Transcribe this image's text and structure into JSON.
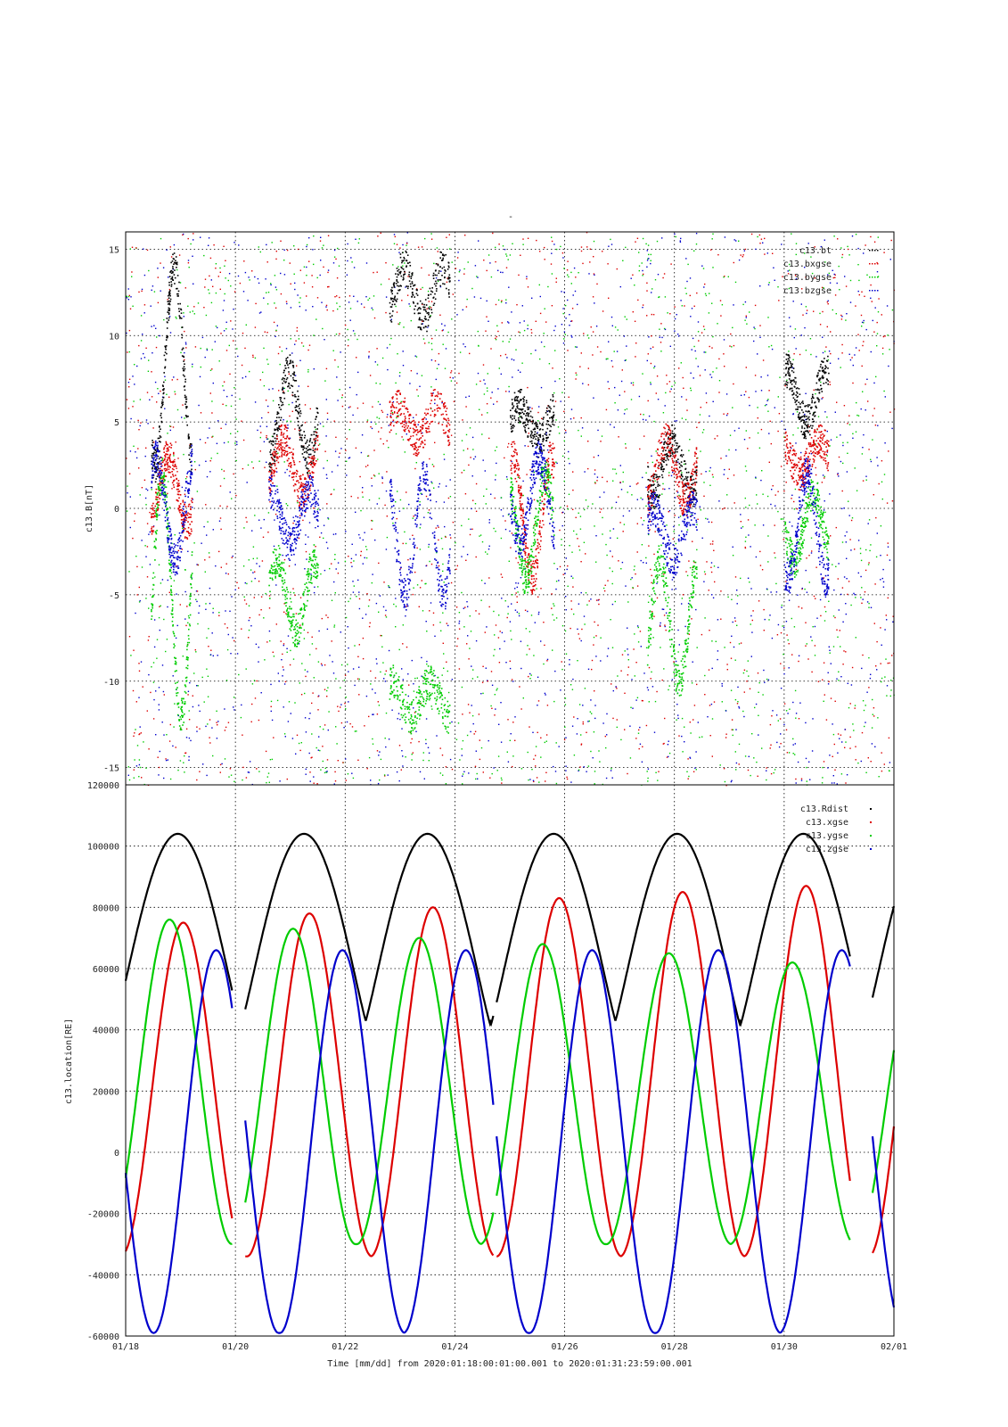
{
  "figure": {
    "top_mark": "-",
    "footer_label": "Time [mm/dd]  from 2020:01:18:00:01:00.001  to  2020:01:31:23:59:00.001"
  },
  "chart_data": [
    {
      "type": "scatter",
      "ylabel": "c13.B[nT]",
      "xlabel": "",
      "ylim": [
        -16,
        16
      ],
      "yticks": [
        -15,
        -10,
        -5,
        0,
        5,
        10,
        15
      ],
      "xlim_days": [
        0,
        14
      ],
      "legend_placement": "top-right",
      "grid": true,
      "series": [
        {
          "name": "c13.bt",
          "color": "#000000"
        },
        {
          "name": "c13.bxgse",
          "color": "#dd0000"
        },
        {
          "name": "c13.bygse",
          "color": "#00cc00"
        },
        {
          "name": "c13.bzgse",
          "color": "#0000cc"
        }
      ],
      "clusters": [
        {
          "x": [
            0.45,
            1.2
          ],
          "bt": [
            2.5,
            14
          ],
          "bx": [
            -0.8,
            3
          ],
          "by": [
            -12,
            2
          ],
          "bz": [
            -3,
            3
          ]
        },
        {
          "x": [
            2.6,
            3.5
          ],
          "bt": [
            3,
            8
          ],
          "bx": [
            1,
            4
          ],
          "by": [
            -7,
            -3
          ],
          "bz": [
            -2,
            1
          ]
        },
        {
          "x": [
            4.8,
            5.9
          ],
          "bt": [
            11,
            14
          ],
          "bx": [
            4,
            6
          ],
          "by": [
            -12,
            -10
          ],
          "bz": [
            -5,
            2
          ]
        },
        {
          "x": [
            7.0,
            7.8
          ],
          "bt": [
            4,
            6
          ],
          "bx": [
            -4,
            3
          ],
          "by": [
            -4,
            2
          ],
          "bz": [
            -2,
            3
          ]
        },
        {
          "x": [
            9.5,
            10.4
          ],
          "bt": [
            1,
            4
          ],
          "bx": [
            0.5,
            4
          ],
          "by": [
            -10,
            -3
          ],
          "bz": [
            -3,
            0
          ]
        },
        {
          "x": [
            12.0,
            12.8
          ],
          "bt": [
            5,
            8
          ],
          "bx": [
            2,
            4
          ],
          "by": [
            -3,
            1
          ],
          "bz": [
            -4,
            2
          ]
        }
      ]
    },
    {
      "type": "line",
      "ylabel": "c13.location[RE]",
      "xlabel": "Time [mm/dd]  from 2020:01:18:00:01:00.001  to  2020:01:31:23:59:00.001",
      "ylim": [
        -60000,
        120000
      ],
      "yticks": [
        -60000,
        -40000,
        -20000,
        0,
        20000,
        40000,
        60000,
        80000,
        100000,
        120000
      ],
      "xlim_days": [
        0,
        14
      ],
      "xticks": [
        {
          "day": 0,
          "label": "01/18"
        },
        {
          "day": 2,
          "label": "01/20"
        },
        {
          "day": 4,
          "label": "01/22"
        },
        {
          "day": 6,
          "label": "01/24"
        },
        {
          "day": 8,
          "label": "01/26"
        },
        {
          "day": 10,
          "label": "01/28"
        },
        {
          "day": 12,
          "label": "01/30"
        },
        {
          "day": 14,
          "label": "02/01"
        }
      ],
      "legend_placement": "top-right",
      "grid": true,
      "orbit_period_days": 2.28,
      "data_gaps_days": [
        [
          1.95,
          2.17
        ],
        [
          6.7,
          6.75
        ],
        [
          13.2,
          13.6
        ]
      ],
      "series": [
        {
          "name": "c13.Rdist",
          "color": "#000000",
          "peaks": [
            [
              0.95,
              104000
            ],
            [
              3.25,
              104000
            ],
            [
              5.5,
              104000
            ],
            [
              7.8,
              104000
            ],
            [
              10.05,
              104000
            ],
            [
              12.35,
              104000
            ]
          ],
          "min": 42000
        },
        {
          "name": "c13.xgse",
          "color": "#dd0000",
          "peaks": [
            [
              1.05,
              75000
            ],
            [
              3.35,
              78000
            ],
            [
              5.6,
              80000
            ],
            [
              7.9,
              83000
            ],
            [
              10.15,
              85000
            ],
            [
              12.4,
              87000
            ]
          ],
          "min": -34000
        },
        {
          "name": "c13.ygse",
          "color": "#00cc00",
          "peaks": [
            [
              0.8,
              76000
            ],
            [
              3.05,
              73000
            ],
            [
              5.35,
              70000
            ],
            [
              7.6,
              68000
            ],
            [
              9.9,
              65000
            ],
            [
              12.15,
              62000
            ]
          ],
          "min": -30000
        },
        {
          "name": "c13.zgse",
          "color": "#0000cc",
          "peaks": [
            [
              1.65,
              66000
            ],
            [
              3.95,
              66000
            ],
            [
              6.2,
              66000
            ],
            [
              8.5,
              66000
            ],
            [
              10.8,
              66000
            ],
            [
              13.05,
              66000
            ]
          ],
          "min": -59000
        }
      ]
    }
  ]
}
